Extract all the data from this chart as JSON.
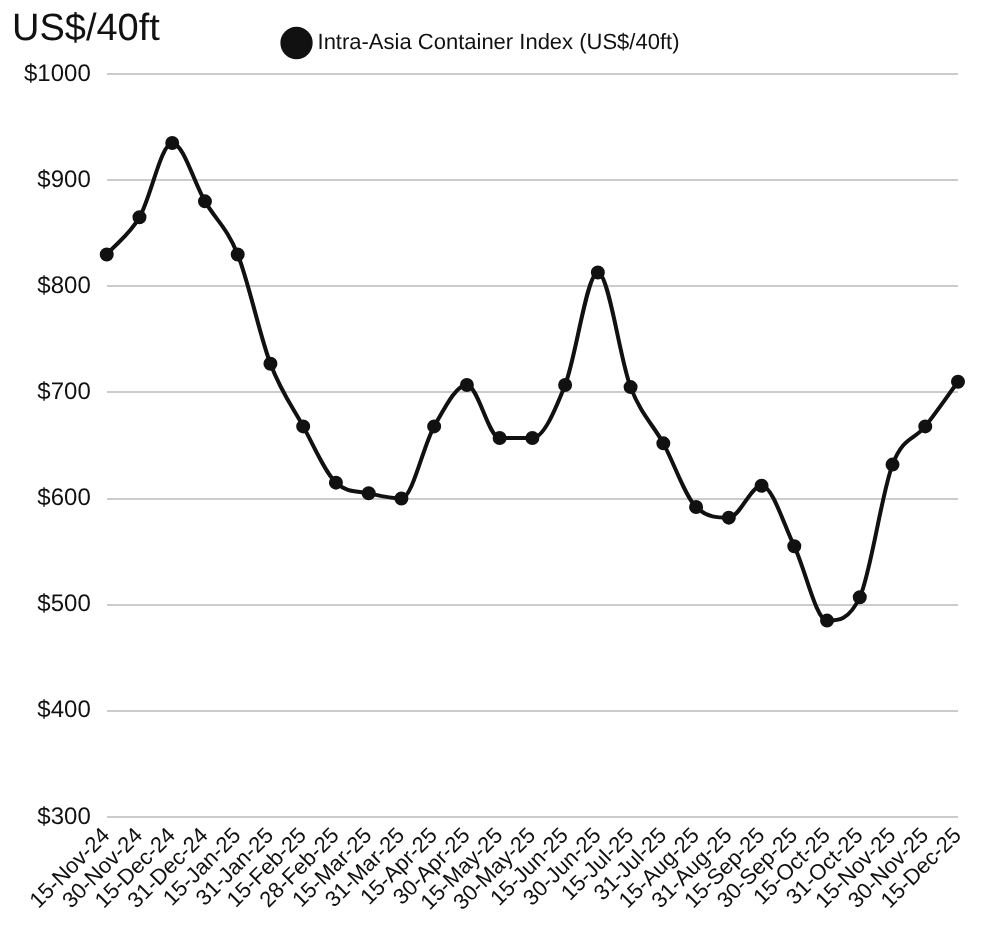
{
  "chart_data": {
    "type": "line",
    "ylabel": "US$/40ft",
    "categories": [
      "15-Nov-24",
      "30-Nov-24",
      "15-Dec-24",
      "31-Dec-24",
      "15-Jan-25",
      "31-Jan-25",
      "15-Feb-25",
      "28-Feb-25",
      "15-Mar-25",
      "31-Mar-25",
      "15-Apr-25",
      "30-Apr-25",
      "15-May-25",
      "30-May-25",
      "15-Jun-25",
      "30-Jun-25",
      "15-Jul-25",
      "31-Jul-25",
      "15-Aug-25",
      "31-Aug-25",
      "15-Sep-25",
      "30-Sep-25",
      "15-Oct-25",
      "31-Oct-25",
      "15-Nov-25",
      "30-Nov-25",
      "15-Dec-25"
    ],
    "series": [
      {
        "name": "Intra-Asia Container Index (US$/40ft)",
        "color": "#111111",
        "values": [
          830,
          865,
          935,
          880,
          830,
          727,
          668,
          615,
          605,
          600,
          668,
          707,
          657,
          657,
          707,
          813,
          705,
          652,
          592,
          582,
          612,
          555,
          485,
          507,
          632,
          668,
          710
        ]
      }
    ],
    "ylim": [
      300,
      1000
    ],
    "yticks": [
      {
        "value": 300,
        "label": "$300"
      },
      {
        "value": 400,
        "label": "$400"
      },
      {
        "value": 500,
        "label": "$500"
      },
      {
        "value": 600,
        "label": "$600"
      },
      {
        "value": 700,
        "label": "$700"
      },
      {
        "value": 800,
        "label": "$800"
      },
      {
        "value": 900,
        "label": "$900"
      },
      {
        "value": 1000,
        "label": "$1000"
      }
    ],
    "grid": "y",
    "legend": "top",
    "marker": "circle",
    "line_style": "solid"
  }
}
